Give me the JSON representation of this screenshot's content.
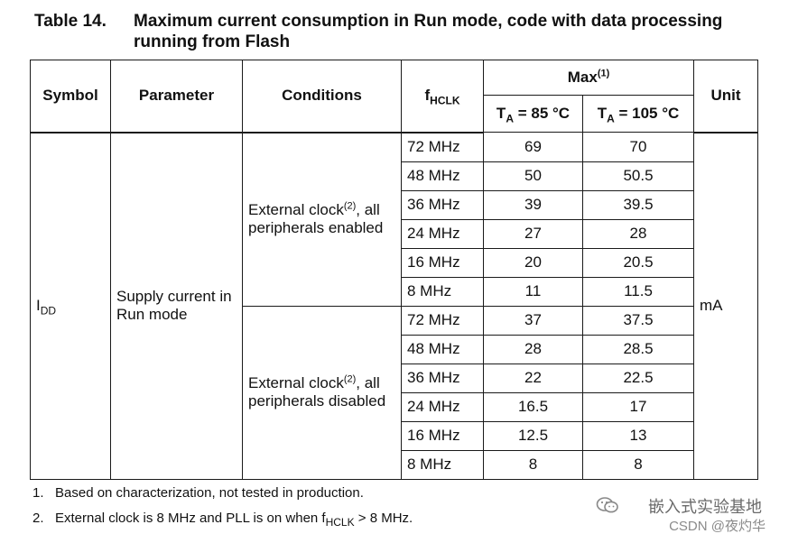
{
  "caption": {
    "number": "Table 14.",
    "title": "Maximum current consumption in Run mode, code with data processing running from Flash"
  },
  "headers": {
    "symbol": "Symbol",
    "parameter": "Parameter",
    "conditions": "Conditions",
    "fhclk_main": "f",
    "fhclk_sub": "HCLK",
    "max_label": "Max",
    "max_note": "(1)",
    "ta85_main": "T",
    "ta85_sub": "A",
    "ta85_rest": " = 85 °C",
    "ta105_main": "T",
    "ta105_sub": "A",
    "ta105_rest": " = 105 °C",
    "unit": "Unit"
  },
  "symbol": {
    "main": "I",
    "sub": "DD"
  },
  "parameter": "Supply current in Run mode",
  "unit": "mA",
  "groups": [
    {
      "condition_pre": "External clock",
      "condition_note": "(2)",
      "condition_post": ", all peripherals enabled",
      "rows": [
        {
          "freq": "72 MHz",
          "ta85": "69",
          "ta105": "70"
        },
        {
          "freq": "48 MHz",
          "ta85": "50",
          "ta105": "50.5"
        },
        {
          "freq": "36 MHz",
          "ta85": "39",
          "ta105": "39.5"
        },
        {
          "freq": "24 MHz",
          "ta85": "27",
          "ta105": "28"
        },
        {
          "freq": "16 MHz",
          "ta85": "20",
          "ta105": "20.5"
        },
        {
          "freq": "8 MHz",
          "ta85": "11",
          "ta105": "11.5"
        }
      ]
    },
    {
      "condition_pre": "External clock",
      "condition_note": "(2)",
      "condition_post": ", all peripherals disabled",
      "rows": [
        {
          "freq": "72 MHz",
          "ta85": "37",
          "ta105": "37.5"
        },
        {
          "freq": "48 MHz",
          "ta85": "28",
          "ta105": "28.5"
        },
        {
          "freq": "36 MHz",
          "ta85": "22",
          "ta105": "22.5"
        },
        {
          "freq": "24 MHz",
          "ta85": "16.5",
          "ta105": "17"
        },
        {
          "freq": "16 MHz",
          "ta85": "12.5",
          "ta105": "13"
        },
        {
          "freq": "8 MHz",
          "ta85": "8",
          "ta105": "8"
        }
      ]
    }
  ],
  "footnotes": [
    {
      "num": "1.",
      "text": "Based on characterization, not tested in production."
    },
    {
      "num": "2.",
      "text_pre": "External clock is 8 MHz and PLL is on when f",
      "text_sub": "HCLK",
      "text_post": " > 8 MHz."
    }
  ],
  "watermark": {
    "line1": "嵌入式实验基地",
    "line2": "CSDN @夜灼华",
    "icon": "wechat-icon"
  }
}
